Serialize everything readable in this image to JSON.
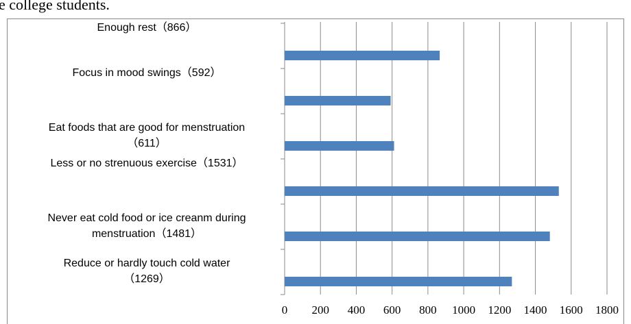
{
  "caption": "e college students.",
  "chart_data": {
    "type": "bar",
    "orientation": "horizontal",
    "categories": [
      "Enough rest（866）",
      "Focus in mood swings（592）",
      "Eat foods that are good for menstruation\n（611）",
      "Less or no strenuous exercise（1531）",
      "Never eat cold food or ice creanm during\nmenstruation（1481）",
      "Reduce or hardly touch cold water\n（1269）"
    ],
    "values": [
      866,
      592,
      611,
      1531,
      1481,
      1269
    ],
    "color": "#4f81bd",
    "xlim": [
      0,
      1800
    ],
    "xticks": [
      0,
      200,
      400,
      600,
      800,
      1000,
      1200,
      1400,
      1600,
      1800
    ],
    "grid": true
  }
}
